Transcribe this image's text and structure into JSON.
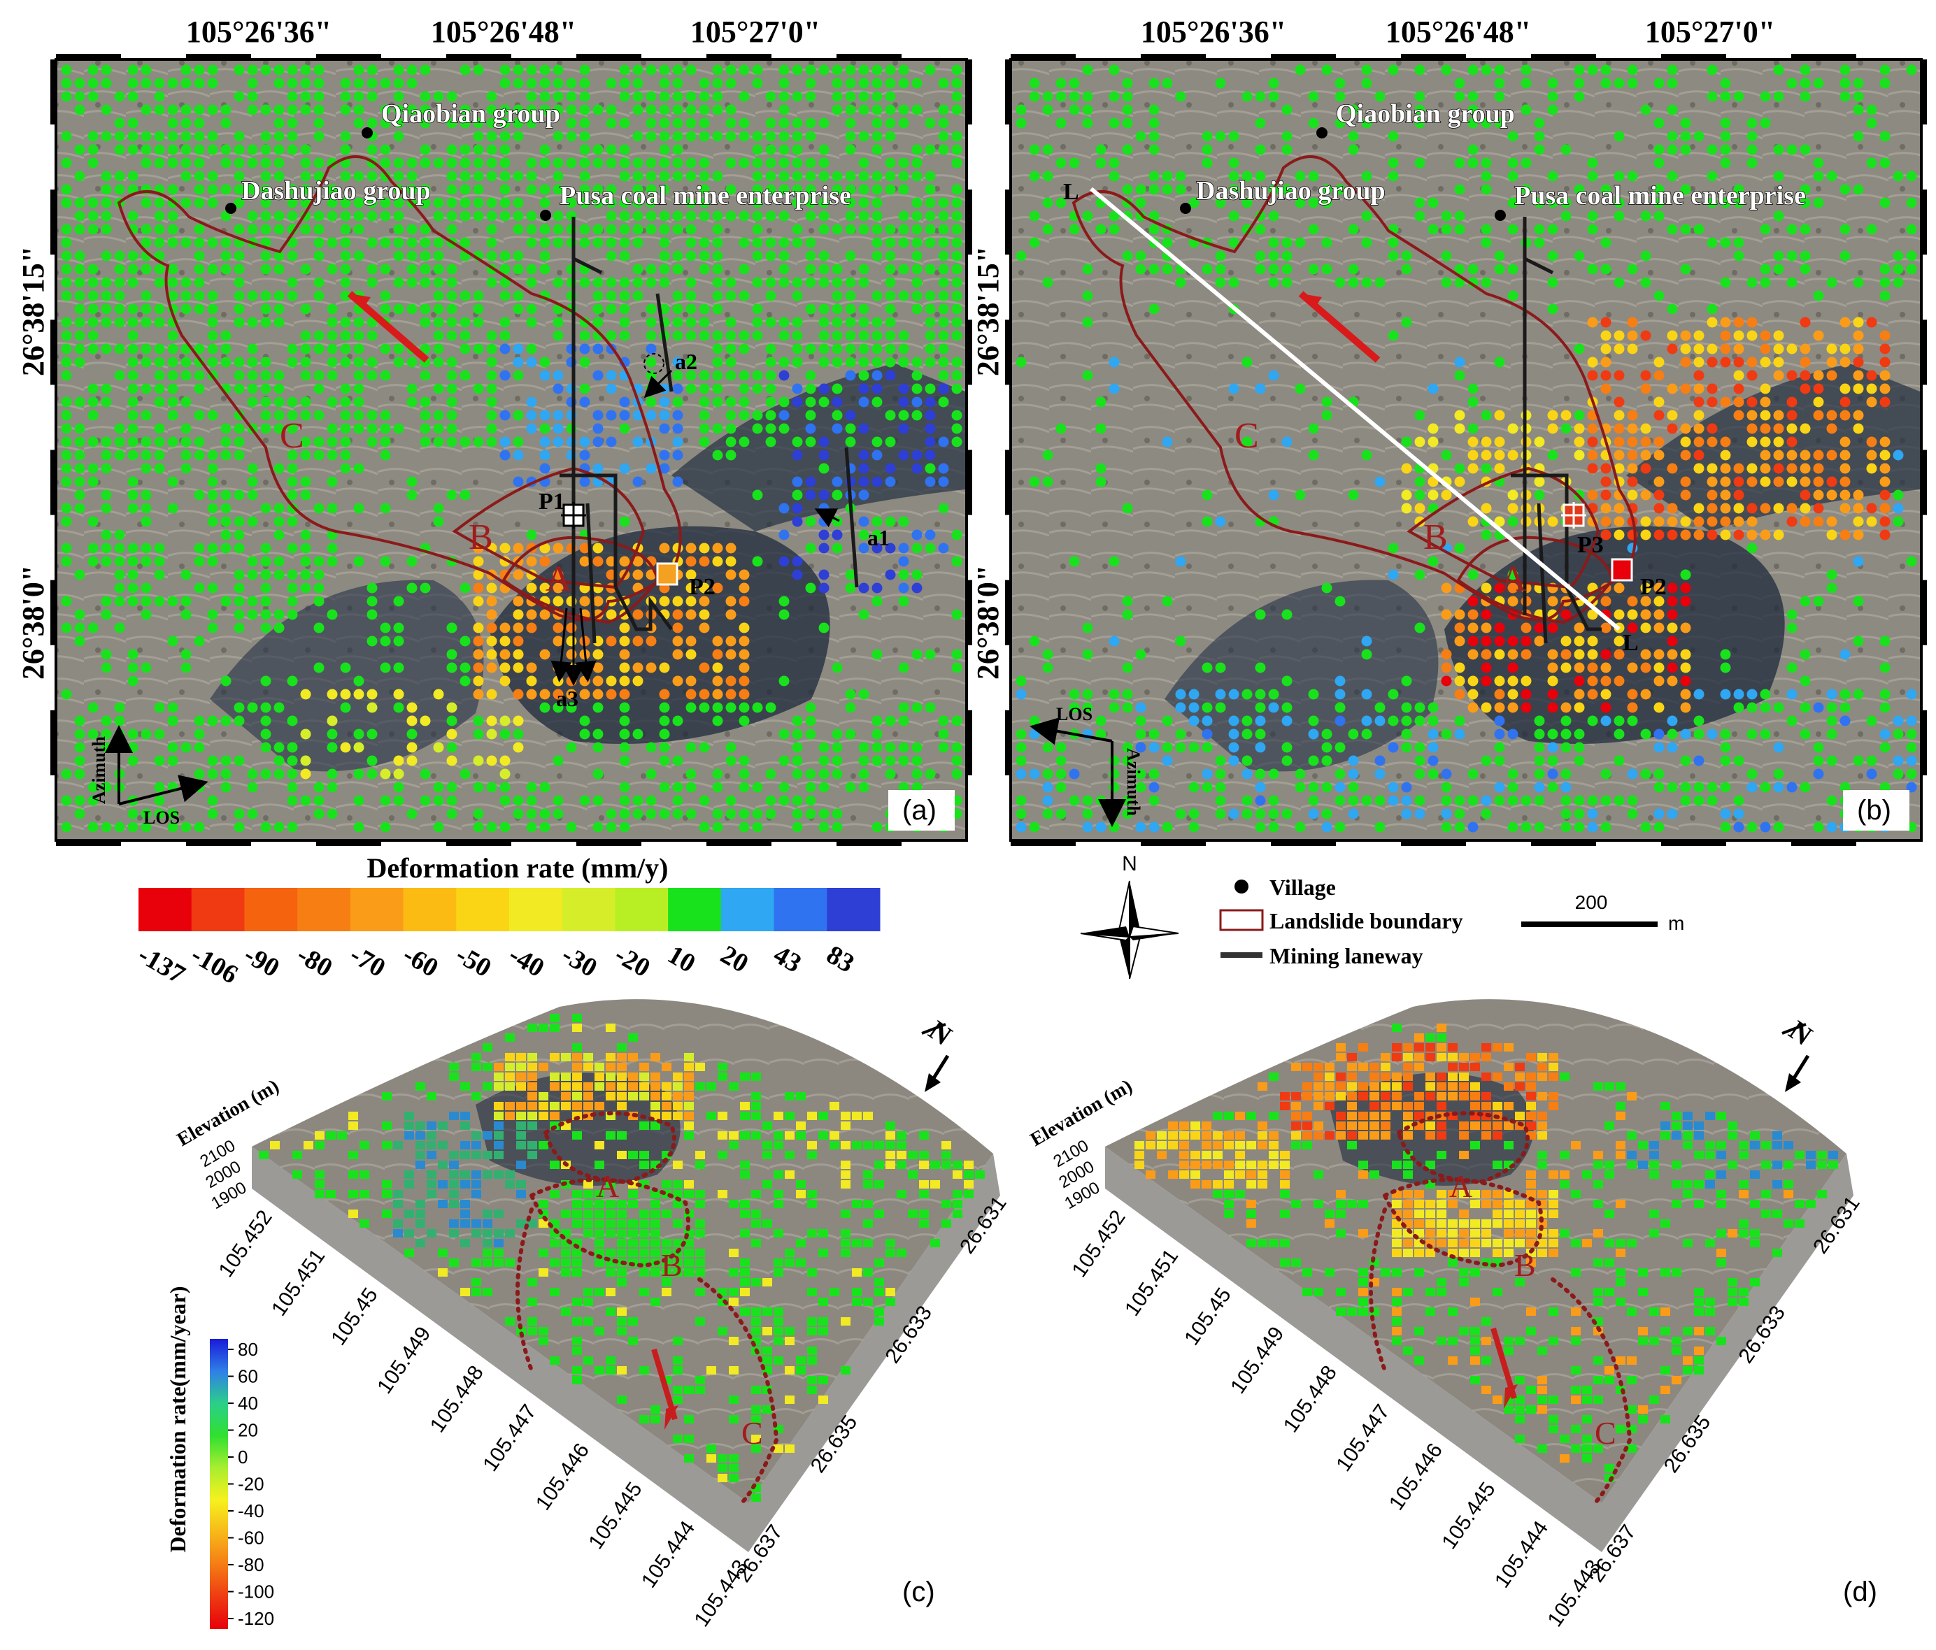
{
  "panels": {
    "a": {
      "label": "(a)",
      "top_ticks": [
        "105°26'36\"",
        "105°26'48\"",
        "105°27'0\""
      ],
      "left_ticks": [
        "26°38'15\"",
        "26°38'0\""
      ],
      "places": [
        "Qiaobian group",
        "Dashujiao group",
        "Pusa coal mine enterprise"
      ],
      "zones": [
        "C",
        "B",
        "A"
      ],
      "points": [
        "P1",
        "P2"
      ],
      "arrows": [
        "a1",
        "a2",
        "a3"
      ],
      "los": "LOS",
      "azimuth": "Azimuth"
    },
    "b": {
      "label": "(b)",
      "top_ticks": [
        "105°26'36\"",
        "105°26'48\"",
        "105°27'0\""
      ],
      "left_ticks": [
        "26°38'15\"",
        "26°38'0\""
      ],
      "places": [
        "Qiaobian group",
        "Dashujiao group",
        "Pusa coal mine enterprise"
      ],
      "zones": [
        "C",
        "B",
        "A"
      ],
      "points": [
        "P3",
        "P2"
      ],
      "profile": [
        "L",
        "L"
      ],
      "los": "LOS",
      "azimuth": "Azimuth"
    },
    "c": {
      "label": "(c)"
    },
    "d": {
      "label": "(d)"
    }
  },
  "colorbar": {
    "title": "Deformation rate (mm/y)",
    "colors": [
      "#e8000a",
      "#f03a12",
      "#f5630f",
      "#f77e12",
      "#fb9c18",
      "#fcbb12",
      "#fad515",
      "#f2ea22",
      "#d6ee2a",
      "#b7ef24",
      "#18e21b",
      "#2fa7f2",
      "#2f73f0",
      "#2e3fd6"
    ],
    "ticks": [
      "-137",
      "-106",
      "-90",
      "-80",
      "-70",
      "-60",
      "-50",
      "-40",
      "-30",
      "-20",
      "10",
      "20",
      "43",
      "83"
    ]
  },
  "legend": {
    "north": "N",
    "items": [
      {
        "icon": "village",
        "label": "Village"
      },
      {
        "icon": "boundary",
        "label": "Landslide boundary"
      },
      {
        "icon": "laneway",
        "label": "Mining laneway"
      }
    ],
    "scale_value": "200",
    "scale_unit": "m"
  },
  "view3d": {
    "elevation_label": "Elevation (m)",
    "elevation_ticks": [
      "2100",
      "2000",
      "1900"
    ],
    "lon_ticks": [
      "105.452",
      "105.451",
      "105.45",
      "105.449",
      "105.448",
      "105.447",
      "105.446",
      "105.445",
      "105.444",
      "105.443"
    ],
    "lat_ticks": [
      "26.631",
      "26.633",
      "26.635",
      "26.637"
    ],
    "north": "N",
    "zones": [
      "A",
      "B",
      "C"
    ],
    "colorbar_title": "Deformation rate(mm/year)",
    "colorbar_ticks": [
      "80",
      "60",
      "40",
      "20",
      "0",
      "-20",
      "-40",
      "-60",
      "-80",
      "-100",
      "-120"
    ],
    "colorbar_colors": [
      "#1a1ad8",
      "#2f7fe8",
      "#2bcf8a",
      "#30e030",
      "#a8ee30",
      "#f6f11e",
      "#f7b81a",
      "#f57c15",
      "#ee3b12",
      "#e8000a"
    ]
  }
}
